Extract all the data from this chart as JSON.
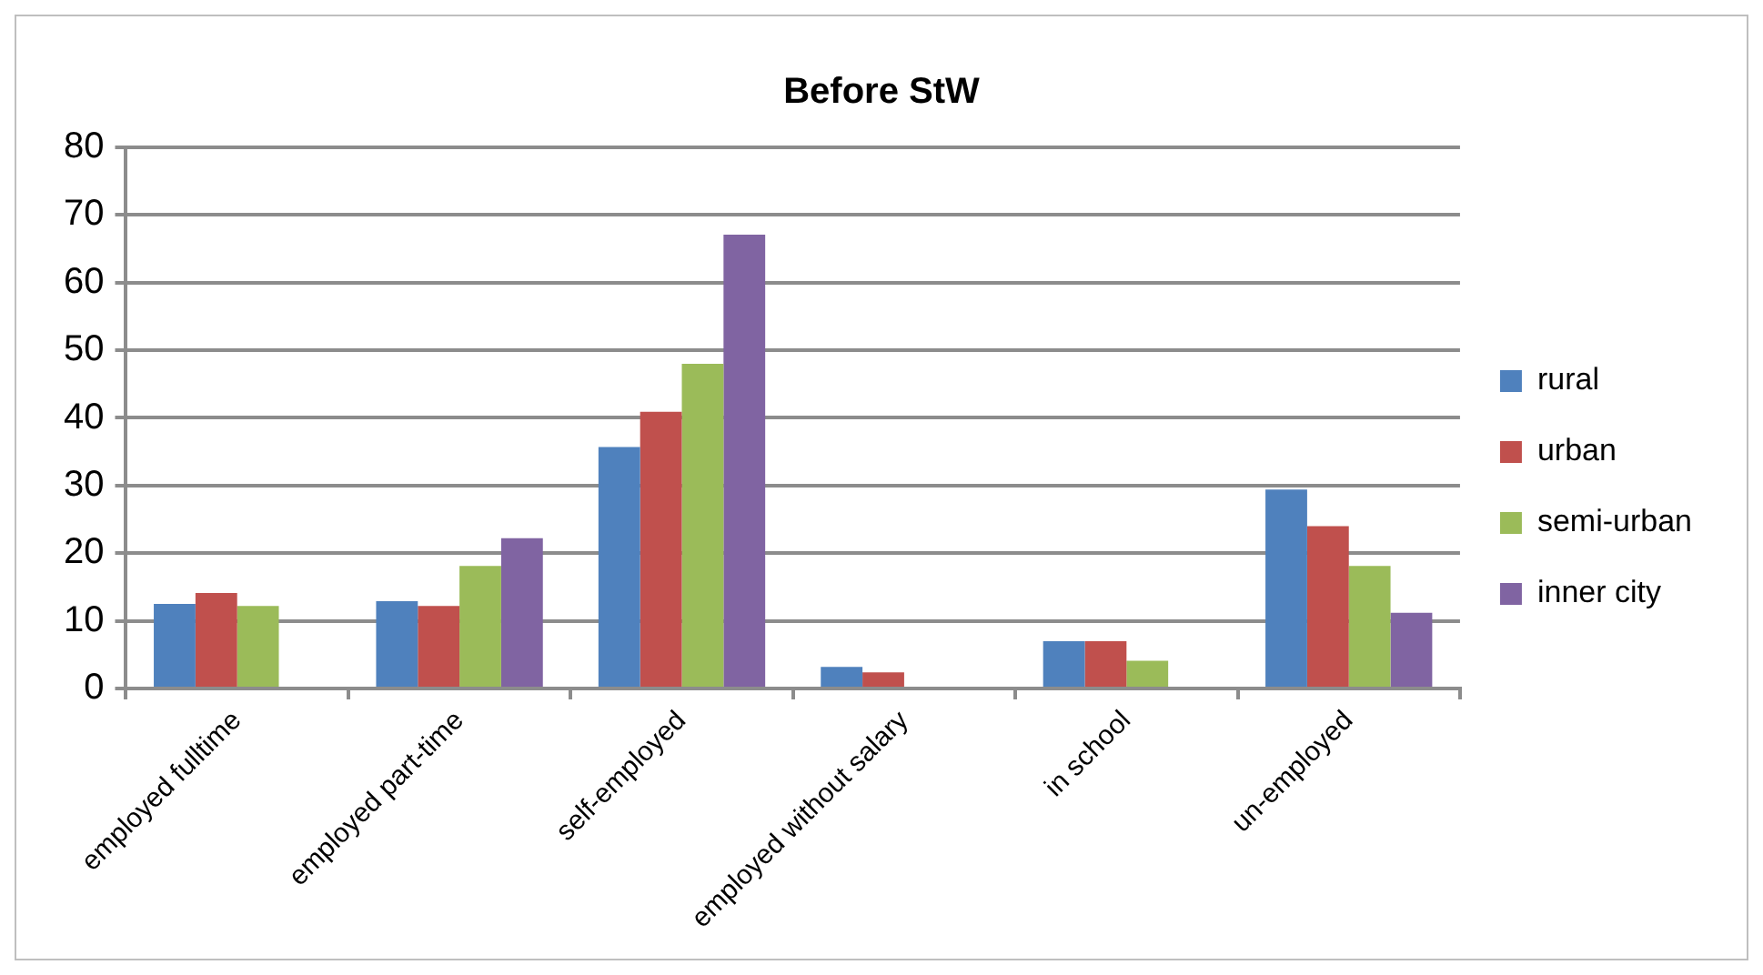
{
  "chart_data": {
    "type": "bar",
    "title": "Before StW",
    "categories": [
      "employed fulltime",
      "employed part-time",
      "self-employed",
      "employed without salary",
      "in school",
      "un-employed"
    ],
    "series": [
      {
        "name": "rural",
        "color": "#4f81bd",
        "values": [
          12.5,
          12.9,
          35.7,
          3.2,
          7.0,
          29.4
        ]
      },
      {
        "name": "urban",
        "color": "#c0504d",
        "values": [
          14.1,
          12.2,
          40.9,
          2.4,
          7.0,
          24
        ]
      },
      {
        "name": "semi-urban",
        "color": "#9bbb59",
        "values": [
          12.2,
          18.1,
          48,
          null,
          4.1,
          18.1
        ]
      },
      {
        "name": "inner city",
        "color": "#8064a2",
        "values": [
          null,
          22.2,
          67.1,
          null,
          null,
          11.2
        ]
      }
    ],
    "ylim": [
      0,
      80
    ],
    "yticks": [
      0,
      10,
      20,
      30,
      40,
      50,
      60,
      70,
      80
    ],
    "grid": "y",
    "legend": "right"
  }
}
